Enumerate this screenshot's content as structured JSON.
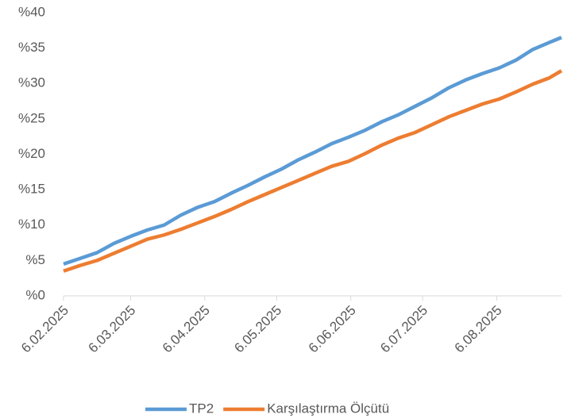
{
  "chart_data": {
    "type": "line",
    "x": [
      "6.02.2025",
      "13.02.2025",
      "20.02.2025",
      "27.02.2025",
      "6.03.2025",
      "13.03.2025",
      "20.03.2025",
      "27.03.2025",
      "3.04.2025",
      "10.04.2025",
      "17.04.2025",
      "24.04.2025",
      "1.05.2025",
      "8.05.2025",
      "15.05.2025",
      "22.05.2025",
      "29.05.2025",
      "5.06.2025",
      "12.06.2025",
      "19.06.2025",
      "26.06.2025",
      "3.07.2025",
      "10.07.2025",
      "17.07.2025",
      "24.07.2025",
      "31.07.2025",
      "7.08.2025",
      "14.08.2025",
      "21.08.2025",
      "28.08.2025",
      "2.09.2025"
    ],
    "series": [
      {
        "name": "TP2",
        "color": "#5b9bd5",
        "values": [
          4.5,
          5.3,
          6.1,
          7.4,
          8.4,
          9.3,
          10.0,
          11.4,
          12.5,
          13.3,
          14.5,
          15.6,
          16.8,
          17.9,
          19.2,
          20.3,
          21.5,
          22.4,
          23.4,
          24.6,
          25.6,
          26.8,
          28.0,
          29.4,
          30.5,
          31.4,
          32.2,
          33.3,
          34.8,
          35.8,
          36.5
        ]
      },
      {
        "name": "Karşılaştırma Ölçütü",
        "color": "#ed7d31",
        "values": [
          3.5,
          4.3,
          5.0,
          6.0,
          7.0,
          8.0,
          8.6,
          9.4,
          10.3,
          11.2,
          12.2,
          13.3,
          14.3,
          15.3,
          16.3,
          17.3,
          18.3,
          19.0,
          20.1,
          21.3,
          22.3,
          23.1,
          24.2,
          25.3,
          26.2,
          27.1,
          27.8,
          28.8,
          29.9,
          30.8,
          31.8
        ]
      }
    ],
    "xlim": [
      "6.02.2025",
      "2.09.2025"
    ],
    "xticks": [
      "6.02.2025",
      "6.03.2025",
      "6.04.2025",
      "6.05.2025",
      "6.06.2025",
      "6.07.2025",
      "6.08.2025"
    ],
    "ylim": [
      0,
      40
    ],
    "yticks": [
      {
        "value": 0,
        "label": "%0"
      },
      {
        "value": 5,
        "label": "%5"
      },
      {
        "value": 10,
        "label": "%10"
      },
      {
        "value": 15,
        "label": "%15"
      },
      {
        "value": 20,
        "label": "%20"
      },
      {
        "value": 25,
        "label": "%25"
      },
      {
        "value": 30,
        "label": "%30"
      },
      {
        "value": 35,
        "label": "%35"
      },
      {
        "value": 40,
        "label": "%40"
      }
    ],
    "legend": "bottom"
  }
}
